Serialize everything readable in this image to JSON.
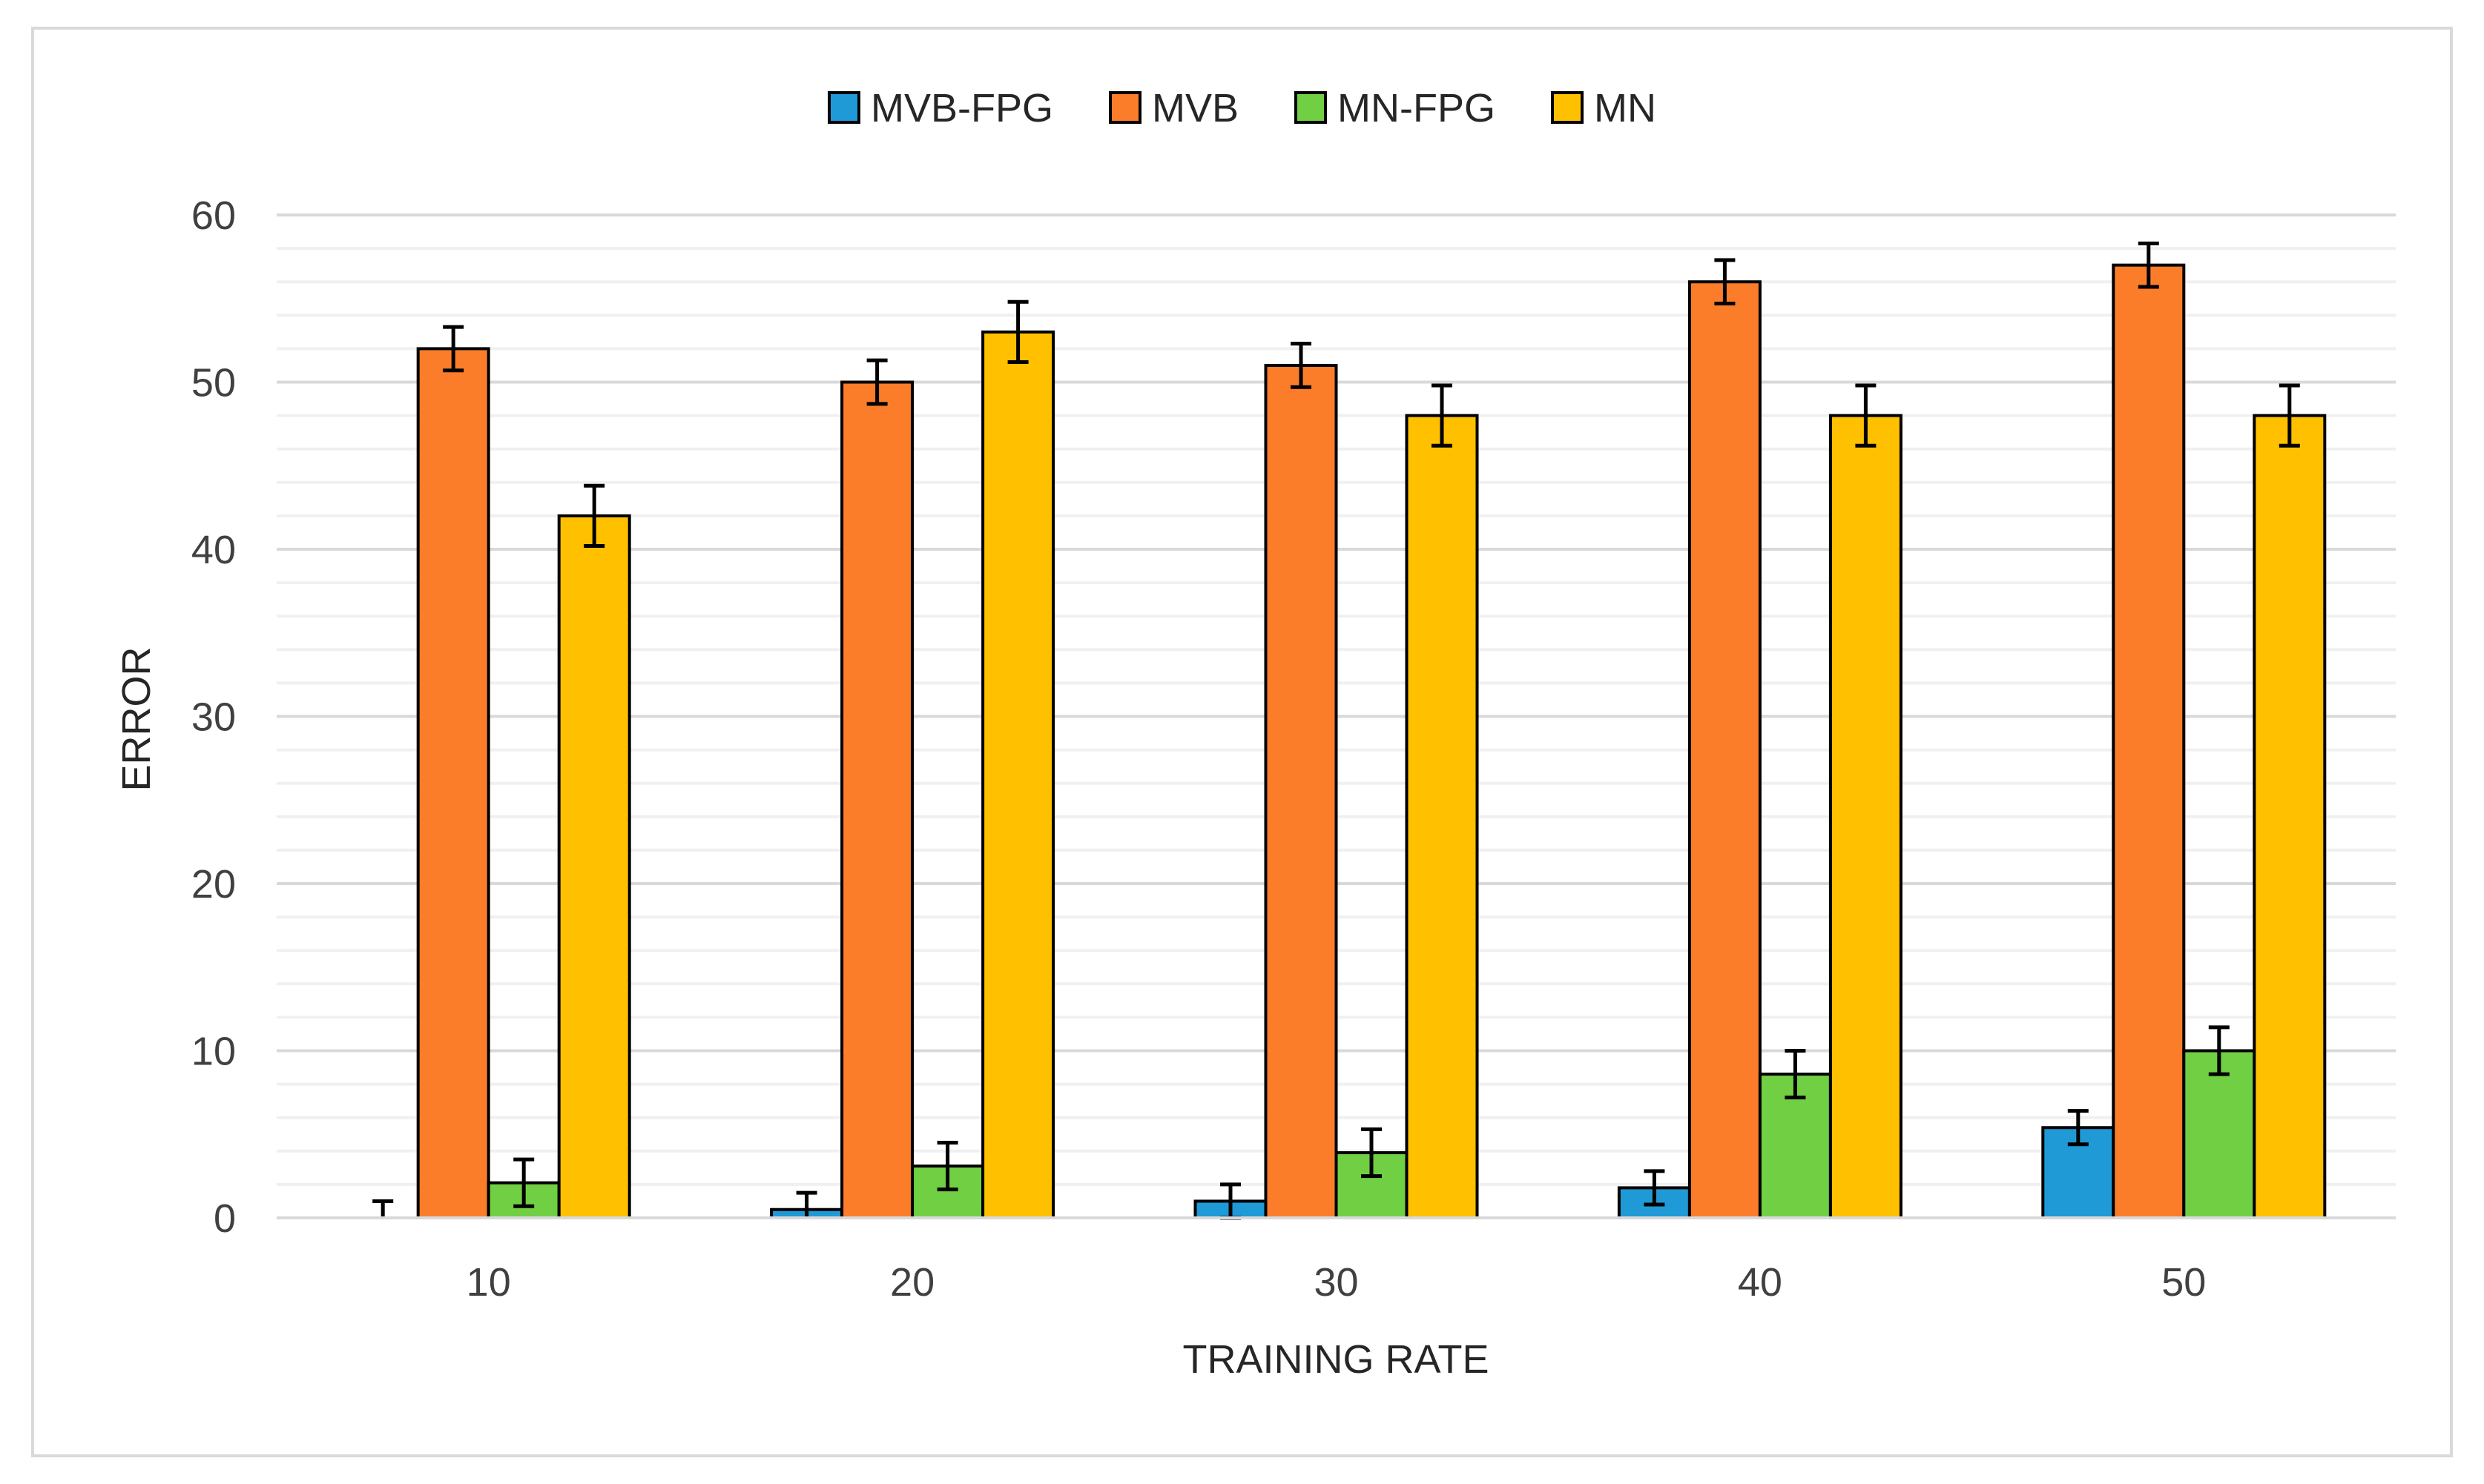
{
  "chart_data": {
    "type": "bar",
    "title": "",
    "xlabel": "TRAINING RATE",
    "ylabel": "ERROR",
    "categories": [
      "10",
      "20",
      "30",
      "40",
      "50"
    ],
    "ylim": [
      0,
      60
    ],
    "yticks": [
      0,
      10,
      20,
      30,
      40,
      50,
      60
    ],
    "minor_gridlines_step": 2,
    "legend_position": "top-center",
    "series": [
      {
        "name": "MVB-FPG",
        "color": "#1f9ad6",
        "values": [
          0,
          0.5,
          1,
          1.8,
          5.4
        ],
        "error": [
          1,
          1,
          1,
          1,
          1
        ]
      },
      {
        "name": "MVB",
        "color": "#fb7d2a",
        "values": [
          52,
          50,
          51,
          56,
          57
        ],
        "error": [
          1.3,
          1.3,
          1.3,
          1.3,
          1.3
        ]
      },
      {
        "name": "MN-FPG",
        "color": "#70cf42",
        "values": [
          2.1,
          3.1,
          3.9,
          8.6,
          10
        ],
        "error": [
          1.4,
          1.4,
          1.4,
          1.4,
          1.4
        ]
      },
      {
        "name": "MN",
        "color": "#ffc000",
        "values": [
          42,
          53,
          48,
          48,
          48
        ],
        "error": [
          1.8,
          1.8,
          1.8,
          1.8,
          1.8
        ]
      }
    ]
  }
}
